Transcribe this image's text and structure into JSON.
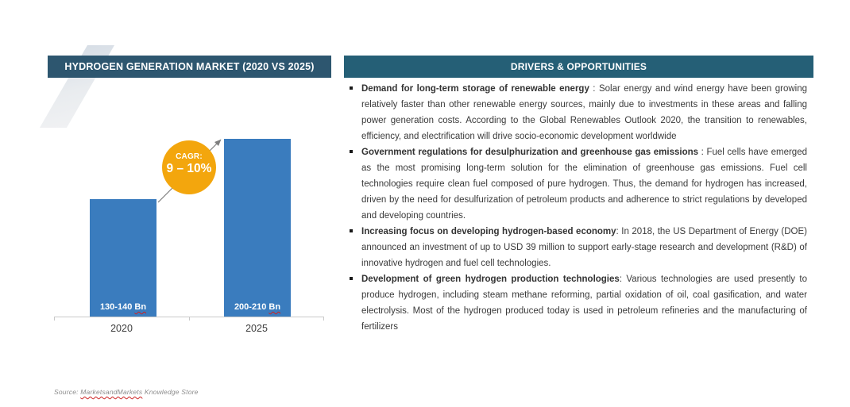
{
  "left_panel": {
    "header": "HYDROGEN GENERATION MARKET (2020 VS 2025)",
    "source": {
      "prefix": "Source: ",
      "brand": "MarketsandMarkets",
      "suffix": " Knowledge Store"
    }
  },
  "right_panel": {
    "header": "DRIVERS & OPPORTUNITIES",
    "bullets": [
      {
        "title": "Demand for long-term storage of renewable energy",
        "separator": " : ",
        "body": "Solar energy and wind energy have been growing relatively faster than other renewable energy sources, mainly due to investments in these areas and falling power generation costs. According to the Global Renewables Outlook 2020, the transition to renewables, efficiency, and electrification will drive socio-economic development worldwide"
      },
      {
        "title": "Government regulations for desulphurization and greenhouse gas emissions",
        "separator": " : ",
        "body": "Fuel cells have emerged as the most promising long-term solution for the elimination of greenhouse gas emissions. Fuel cell technologies require clean fuel composed of pure hydrogen. Thus, the demand for hydrogen has increased, driven by the need for desulfurization of petroleum products and adherence to strict regulations by developed and developing countries."
      },
      {
        "title": "Increasing focus on developing hydrogen-based economy",
        "separator": ": ",
        "body": "In 2018, the US Department of Energy (DOE) announced an investment of up to USD 39 million to support early-stage research and development (R&D) of innovative hydrogen and fuel cell technologies."
      },
      {
        "title": "Development of green hydrogen production technologies",
        "separator": ": ",
        "body": "Various technologies are used presently to produce hydrogen, including steam methane reforming, partial oxidation of oil, coal gasification, and water electrolysis. Most of the hydrogen produced today is used in petroleum refineries and the manufacturing of fertilizers"
      }
    ]
  },
  "chart_data": {
    "type": "bar",
    "title": "HYDROGEN GENERATION MARKET (2020 VS 2025)",
    "categories": [
      "2020",
      "2025"
    ],
    "values": [
      135,
      205
    ],
    "value_ranges": [
      "130-140",
      "200-210"
    ],
    "unit": "Bn",
    "annotation": {
      "label": "CAGR:",
      "value": "9 – 10%"
    },
    "ylim": [
      0,
      230
    ],
    "grid": false,
    "legend": false,
    "xlabel": "",
    "ylabel": ""
  },
  "colors": {
    "left_header_bg": "#2d566f",
    "right_header_bg": "#255f76",
    "bar_color": "#3a7cbe",
    "cagr_circle": "#f3a60d",
    "arrow": "#7f7f7f",
    "axis": "#c9c9c9"
  }
}
